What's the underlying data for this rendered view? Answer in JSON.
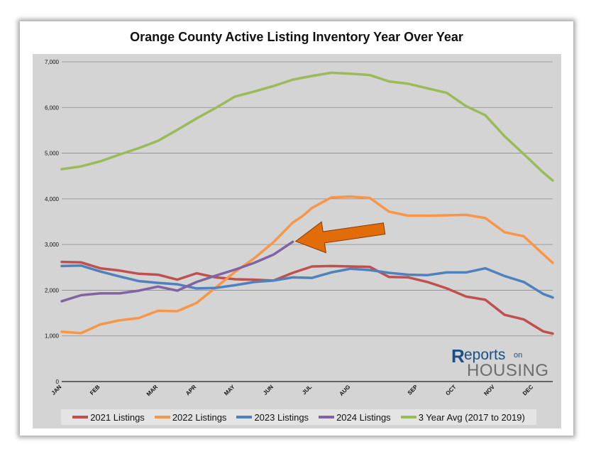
{
  "chart_data": {
    "type": "line",
    "title": "Orange County Active Listing Inventory Year Over Year",
    "xlabel": "",
    "ylabel": "",
    "ylim": [
      0,
      7000
    ],
    "yticks": [
      0,
      1000,
      2000,
      3000,
      4000,
      5000,
      6000,
      7000
    ],
    "ytick_labels": [
      "0",
      "1,000",
      "2,000",
      "3,000",
      "4,000",
      "5,000",
      "6,000",
      "7,000"
    ],
    "xlim": [
      0,
      51
    ],
    "month_ticks": [
      {
        "label": "JAN",
        "x": 0
      },
      {
        "label": "FEB",
        "x": 4
      },
      {
        "label": "MAR",
        "x": 10
      },
      {
        "label": "APR",
        "x": 14
      },
      {
        "label": "MAY",
        "x": 18
      },
      {
        "label": "JUN",
        "x": 22
      },
      {
        "label": "JUL",
        "x": 26
      },
      {
        "label": "AUG",
        "x": 30
      },
      {
        "label": "SEP",
        "x": 37
      },
      {
        "label": "OCT",
        "x": 41
      },
      {
        "label": "NOV",
        "x": 45
      },
      {
        "label": "DEC",
        "x": 49
      }
    ],
    "grid": true,
    "legend_position": "bottom",
    "series": [
      {
        "name": "2021 Listings",
        "color": "#c0504d",
        "x": [
          0,
          2,
          4,
          6,
          8,
          10,
          12,
          14,
          16,
          18,
          20,
          22,
          24,
          26,
          28,
          30,
          32,
          34,
          36,
          38,
          40,
          42,
          44,
          46,
          48,
          50,
          51
        ],
        "values": [
          2620,
          2610,
          2480,
          2430,
          2360,
          2340,
          2230,
          2370,
          2280,
          2240,
          2230,
          2210,
          2380,
          2520,
          2530,
          2520,
          2510,
          2290,
          2280,
          2180,
          2040,
          1860,
          1790,
          1460,
          1360,
          1100,
          1050
        ]
      },
      {
        "name": "2022 Listings",
        "color": "#f79646",
        "x": [
          0,
          2,
          4,
          6,
          8,
          10,
          12,
          14,
          16,
          18,
          20,
          22,
          24,
          25,
          26,
          28,
          30,
          32,
          34,
          36,
          38,
          40,
          42,
          44,
          46,
          48,
          50,
          51
        ],
        "values": [
          1090,
          1060,
          1250,
          1340,
          1390,
          1550,
          1540,
          1720,
          2060,
          2400,
          2700,
          3050,
          3480,
          3620,
          3800,
          4030,
          4050,
          4020,
          3720,
          3630,
          3630,
          3640,
          3650,
          3580,
          3270,
          3180,
          2790,
          2600
        ]
      },
      {
        "name": "2023 Listings",
        "color": "#4f81bd",
        "x": [
          0,
          2,
          4,
          6,
          8,
          10,
          12,
          14,
          16,
          18,
          20,
          22,
          24,
          26,
          28,
          30,
          32,
          34,
          36,
          38,
          40,
          42,
          44,
          46,
          48,
          50,
          51
        ],
        "values": [
          2530,
          2540,
          2410,
          2300,
          2200,
          2160,
          2130,
          2040,
          2050,
          2110,
          2180,
          2210,
          2280,
          2270,
          2390,
          2470,
          2440,
          2380,
          2340,
          2330,
          2390,
          2390,
          2480,
          2310,
          2180,
          1920,
          1840
        ]
      },
      {
        "name": "2024 Listings",
        "color": "#8064a2",
        "x": [
          0,
          2,
          4,
          6,
          8,
          10,
          12,
          14,
          16,
          18,
          20,
          22,
          24
        ],
        "values": [
          1760,
          1890,
          1930,
          1930,
          1990,
          2080,
          1990,
          2180,
          2320,
          2450,
          2600,
          2780,
          3060
        ]
      },
      {
        "name": "3 Year Avg (2017 to 2019)",
        "color": "#9bbb59",
        "x": [
          0,
          2,
          4,
          6,
          8,
          10,
          12,
          14,
          16,
          18,
          20,
          22,
          24,
          26,
          28,
          30,
          32,
          34,
          36,
          38,
          40,
          42,
          44,
          46,
          48,
          50,
          51
        ],
        "values": [
          4650,
          4710,
          4820,
          4970,
          5110,
          5270,
          5510,
          5760,
          5990,
          6240,
          6350,
          6470,
          6610,
          6690,
          6760,
          6740,
          6710,
          6570,
          6520,
          6420,
          6320,
          6030,
          5830,
          5370,
          4980,
          4580,
          4400
        ]
      }
    ],
    "annotations": [
      {
        "type": "arrow",
        "color": "#e26b0a",
        "from": [
          33.5,
          3350
        ],
        "to": [
          24.3,
          3070
        ]
      }
    ]
  },
  "logo": {
    "r": "R",
    "eports": "eports",
    "on": "on",
    "housing": "HOUSING"
  }
}
